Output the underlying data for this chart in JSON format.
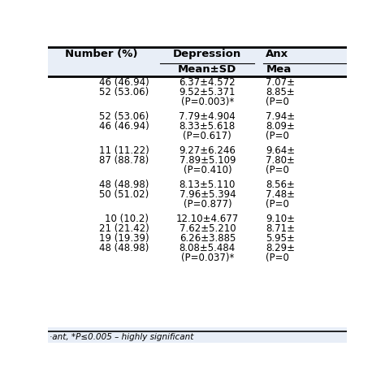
{
  "col_headers": [
    "Number (%)",
    "Depression",
    "Anx"
  ],
  "col_subheaders": [
    "",
    "Mean±SD",
    "Mea"
  ],
  "header_bg": "#e8eef7",
  "row_groups": [
    {
      "rows": [
        {
          "col1": "46 (46.94)",
          "col2": "6.37±4.572",
          "col3": "7.07±"
        },
        {
          "col1": "52 (53.06)",
          "col2": "9.52±5.371",
          "col3": "8.85±"
        },
        {
          "col1": "",
          "col2": "(P=0.003)*",
          "col3": "(P=0"
        }
      ]
    },
    {
      "rows": [
        {
          "col1": "52 (53.06)",
          "col2": "7.79±4.904",
          "col3": "7.94±"
        },
        {
          "col1": "46 (46.94)",
          "col2": "8.33±5.618",
          "col3": "8.09±"
        },
        {
          "col1": "",
          "col2": "(P=0.617)",
          "col3": "(P=0"
        }
      ]
    },
    {
      "rows": [
        {
          "col1": "11 (11.22)",
          "col2": "9.27±6.246",
          "col3": "9.64±"
        },
        {
          "col1": "87 (88.78)",
          "col2": "7.89±5.109",
          "col3": "7.80±"
        },
        {
          "col1": "",
          "col2": "(P=0.410)",
          "col3": "(P=0"
        }
      ]
    },
    {
      "rows": [
        {
          "col1": "48 (48.98)",
          "col2": "8.13±5.110",
          "col3": "8.56±"
        },
        {
          "col1": "50 (51.02)",
          "col2": "7.96±5.394",
          "col3": "7.48±"
        },
        {
          "col1": "",
          "col2": "(P=0.877)",
          "col3": "(P=0"
        }
      ]
    },
    {
      "rows": [
        {
          "col1": "10 (10.2)",
          "col2": "12.10±4.677",
          "col3": "9.10±"
        },
        {
          "col1": "21 (21.42)",
          "col2": "7.62±5.210",
          "col3": "8.71±"
        },
        {
          "col1": "19 (19.39)",
          "col2": "6.26±3.885",
          "col3": "5.95±"
        },
        {
          "col1": "48 (48.98)",
          "col2": "8.08±5.484",
          "col3": "8.29±"
        },
        {
          "col1": "",
          "col2": "(P=0.037)*",
          "col3": "(P=0"
        }
      ]
    }
  ],
  "footer": "·ant, *P≤0.005 – highly significant",
  "bg_color": "#ffffff",
  "body_text_color": "#000000",
  "font_size": 8.5,
  "header_font_size": 9.5
}
